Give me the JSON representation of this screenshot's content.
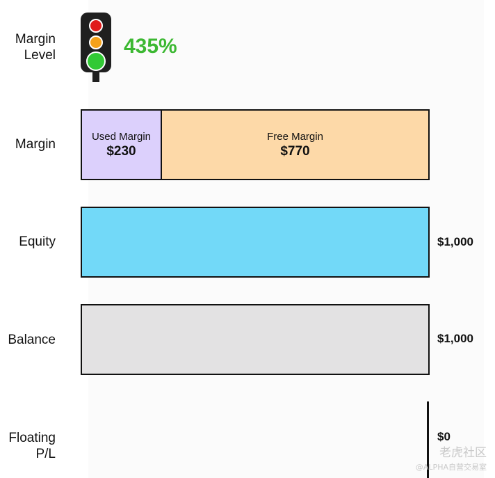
{
  "rows": {
    "margin_level": {
      "label_line1": "Margin",
      "label_line2": "Level",
      "value": "435%",
      "value_color": "#3cb832"
    },
    "margin": {
      "label": "Margin",
      "used": {
        "title": "Used Margin",
        "value": "$230",
        "color": "#dcd0fc",
        "share": 0.23
      },
      "free": {
        "title": "Free Margin",
        "value": "$770",
        "color": "#fdd9a8",
        "share": 0.77
      }
    },
    "equity": {
      "label": "Equity",
      "value": "$1,000",
      "color": "#72d9f8"
    },
    "balance": {
      "label": "Balance",
      "value": "$1,000",
      "color": "#e3e2e3"
    },
    "floating_pl": {
      "label_line1": "Floating",
      "label_line2": "P/L",
      "value": "$0"
    }
  },
  "traffic_light": {
    "red": "#e01b1b",
    "amber": "#f4a11a",
    "green": "#32c935",
    "active": "green"
  },
  "watermark": {
    "line1": "老虎社区",
    "line2": "@ALPHA自营交易室"
  }
}
